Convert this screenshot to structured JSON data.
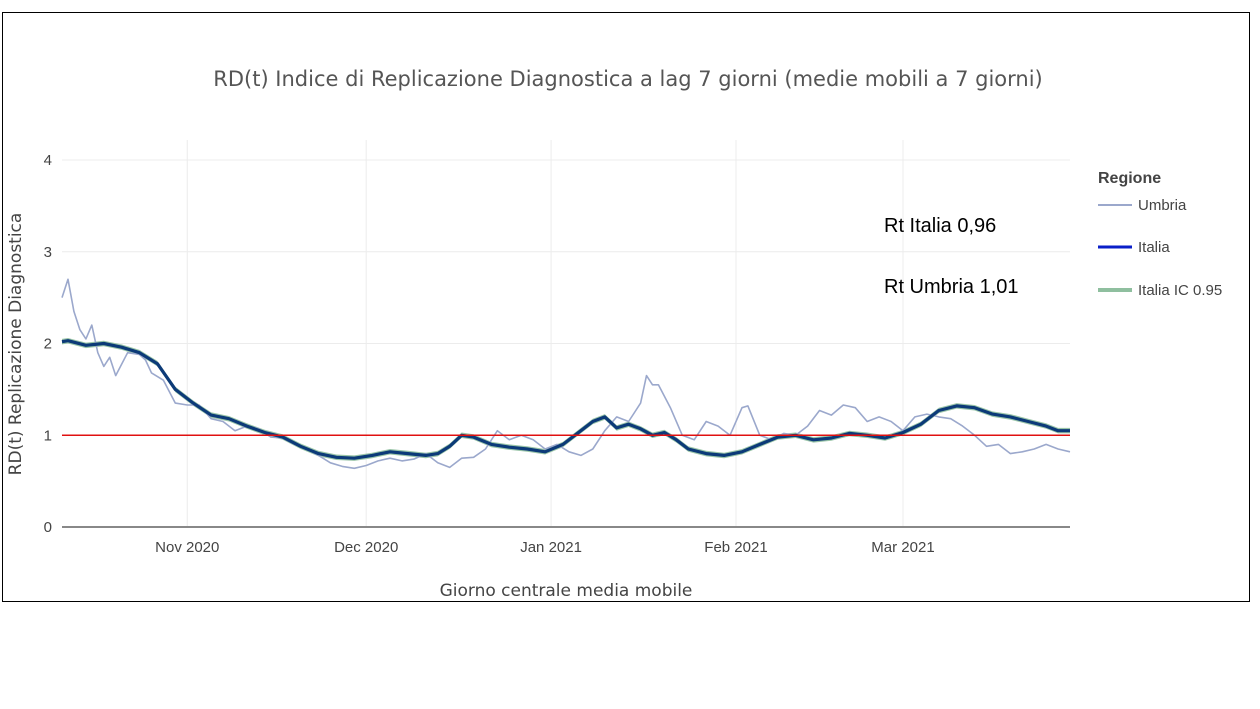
{
  "chart_data": {
    "type": "line",
    "title": "RD(t) Indice di Replicazione Diagnostica a lag 7 giorni (medie mobili a 7 giorni)",
    "xlabel": "Giorno centrale media mobile",
    "ylabel": "RD(t) Replicazione Diagnostica",
    "ylim": [
      0,
      4
    ],
    "xlim": [
      "2020-10-11",
      "2021-03-29"
    ],
    "yticks": [
      "0",
      "1",
      "2",
      "3",
      "4"
    ],
    "xticks": [
      {
        "date": "2020-11-01",
        "label": "Nov 2020"
      },
      {
        "date": "2020-12-01",
        "label": "Dec 2020"
      },
      {
        "date": "2021-01-01",
        "label": "Jan 2021"
      },
      {
        "date": "2021-02-01",
        "label": "Feb 2021"
      },
      {
        "date": "2021-03-01",
        "label": "Mar 2021"
      }
    ],
    "grid": true,
    "reference_line": {
      "y": 1,
      "color": "#e01010"
    },
    "legend": {
      "title": "Regione",
      "placement": "right",
      "entries": [
        {
          "name": "Umbria",
          "color": "#9ba8cc"
        },
        {
          "name": "Italia",
          "color": "#0a1fc8"
        },
        {
          "name": "Italia IC 0.95",
          "color": "#8fbf9f"
        }
      ]
    },
    "annotations": [
      "Rt Italia 0,96",
      "Rt Umbria 1,01"
    ],
    "series": [
      {
        "name": "Umbria",
        "color": "#9ba8cc",
        "points": [
          [
            "2020-10-11",
            2.5
          ],
          [
            "2020-10-12",
            2.7
          ],
          [
            "2020-10-13",
            2.35
          ],
          [
            "2020-10-14",
            2.15
          ],
          [
            "2020-10-15",
            2.05
          ],
          [
            "2020-10-16",
            2.2
          ],
          [
            "2020-10-17",
            1.9
          ],
          [
            "2020-10-18",
            1.75
          ],
          [
            "2020-10-19",
            1.85
          ],
          [
            "2020-10-20",
            1.65
          ],
          [
            "2020-10-22",
            1.9
          ],
          [
            "2020-10-24",
            1.88
          ],
          [
            "2020-10-25",
            1.82
          ],
          [
            "2020-10-26",
            1.68
          ],
          [
            "2020-10-28",
            1.6
          ],
          [
            "2020-10-30",
            1.35
          ],
          [
            "2020-11-01",
            1.33
          ],
          [
            "2020-11-03",
            1.33
          ],
          [
            "2020-11-05",
            1.18
          ],
          [
            "2020-11-07",
            1.15
          ],
          [
            "2020-11-09",
            1.05
          ],
          [
            "2020-11-11",
            1.1
          ],
          [
            "2020-11-13",
            1.07
          ],
          [
            "2020-11-15",
            0.98
          ],
          [
            "2020-11-17",
            0.97
          ],
          [
            "2020-11-19",
            0.9
          ],
          [
            "2020-11-21",
            0.85
          ],
          [
            "2020-11-23",
            0.78
          ],
          [
            "2020-11-25",
            0.7
          ],
          [
            "2020-11-27",
            0.66
          ],
          [
            "2020-11-29",
            0.64
          ],
          [
            "2020-12-01",
            0.67
          ],
          [
            "2020-12-03",
            0.72
          ],
          [
            "2020-12-05",
            0.75
          ],
          [
            "2020-12-07",
            0.72
          ],
          [
            "2020-12-09",
            0.74
          ],
          [
            "2020-12-11",
            0.8
          ],
          [
            "2020-12-13",
            0.7
          ],
          [
            "2020-12-15",
            0.65
          ],
          [
            "2020-12-17",
            0.75
          ],
          [
            "2020-12-19",
            0.76
          ],
          [
            "2020-12-21",
            0.85
          ],
          [
            "2020-12-23",
            1.05
          ],
          [
            "2020-12-25",
            0.95
          ],
          [
            "2020-12-27",
            1.0
          ],
          [
            "2020-12-29",
            0.95
          ],
          [
            "2020-12-31",
            0.85
          ],
          [
            "2021-01-02",
            0.9
          ],
          [
            "2021-01-04",
            0.82
          ],
          [
            "2021-01-06",
            0.78
          ],
          [
            "2021-01-08",
            0.85
          ],
          [
            "2021-01-10",
            1.05
          ],
          [
            "2021-01-12",
            1.2
          ],
          [
            "2021-01-14",
            1.15
          ],
          [
            "2021-01-16",
            1.35
          ],
          [
            "2021-01-17",
            1.65
          ],
          [
            "2021-01-18",
            1.55
          ],
          [
            "2021-01-19",
            1.55
          ],
          [
            "2021-01-21",
            1.3
          ],
          [
            "2021-01-23",
            1.0
          ],
          [
            "2021-01-25",
            0.95
          ],
          [
            "2021-01-27",
            1.15
          ],
          [
            "2021-01-29",
            1.1
          ],
          [
            "2021-01-31",
            1.0
          ],
          [
            "2021-02-02",
            1.3
          ],
          [
            "2021-02-03",
            1.32
          ],
          [
            "2021-02-05",
            1.0
          ],
          [
            "2021-02-07",
            0.95
          ],
          [
            "2021-02-09",
            1.02
          ],
          [
            "2021-02-11",
            1.0
          ],
          [
            "2021-02-13",
            1.1
          ],
          [
            "2021-02-15",
            1.27
          ],
          [
            "2021-02-17",
            1.22
          ],
          [
            "2021-02-19",
            1.33
          ],
          [
            "2021-02-21",
            1.3
          ],
          [
            "2021-02-23",
            1.15
          ],
          [
            "2021-02-25",
            1.2
          ],
          [
            "2021-02-27",
            1.15
          ],
          [
            "2021-03-01",
            1.05
          ],
          [
            "2021-03-03",
            1.2
          ],
          [
            "2021-03-05",
            1.23
          ],
          [
            "2021-03-07",
            1.2
          ],
          [
            "2021-03-09",
            1.18
          ],
          [
            "2021-03-11",
            1.1
          ],
          [
            "2021-03-13",
            1.0
          ],
          [
            "2021-03-15",
            0.88
          ],
          [
            "2021-03-17",
            0.9
          ],
          [
            "2021-03-19",
            0.8
          ],
          [
            "2021-03-21",
            0.82
          ],
          [
            "2021-03-23",
            0.85
          ],
          [
            "2021-03-25",
            0.9
          ],
          [
            "2021-03-27",
            0.85
          ],
          [
            "2021-03-29",
            0.82
          ]
        ]
      },
      {
        "name": "Italia",
        "color": "#0c3a78",
        "points": [
          [
            "2020-10-11",
            2.02
          ],
          [
            "2020-10-12",
            2.03
          ],
          [
            "2020-10-15",
            1.98
          ],
          [
            "2020-10-18",
            2.0
          ],
          [
            "2020-10-21",
            1.96
          ],
          [
            "2020-10-24",
            1.9
          ],
          [
            "2020-10-27",
            1.78
          ],
          [
            "2020-10-30",
            1.5
          ],
          [
            "2020-11-02",
            1.35
          ],
          [
            "2020-11-05",
            1.22
          ],
          [
            "2020-11-08",
            1.18
          ],
          [
            "2020-11-11",
            1.1
          ],
          [
            "2020-11-14",
            1.03
          ],
          [
            "2020-11-17",
            0.98
          ],
          [
            "2020-11-20",
            0.88
          ],
          [
            "2020-11-23",
            0.8
          ],
          [
            "2020-11-26",
            0.76
          ],
          [
            "2020-11-29",
            0.75
          ],
          [
            "2020-12-02",
            0.78
          ],
          [
            "2020-12-05",
            0.82
          ],
          [
            "2020-12-08",
            0.8
          ],
          [
            "2020-12-11",
            0.78
          ],
          [
            "2020-12-13",
            0.8
          ],
          [
            "2020-12-15",
            0.88
          ],
          [
            "2020-12-17",
            1.0
          ],
          [
            "2020-12-19",
            0.98
          ],
          [
            "2020-12-22",
            0.9
          ],
          [
            "2020-12-25",
            0.87
          ],
          [
            "2020-12-28",
            0.85
          ],
          [
            "2020-12-31",
            0.82
          ],
          [
            "2021-01-03",
            0.9
          ],
          [
            "2021-01-06",
            1.05
          ],
          [
            "2021-01-08",
            1.15
          ],
          [
            "2021-01-10",
            1.2
          ],
          [
            "2021-01-12",
            1.08
          ],
          [
            "2021-01-14",
            1.12
          ],
          [
            "2021-01-16",
            1.07
          ],
          [
            "2021-01-18",
            1.0
          ],
          [
            "2021-01-20",
            1.03
          ],
          [
            "2021-01-22",
            0.95
          ],
          [
            "2021-01-24",
            0.85
          ],
          [
            "2021-01-27",
            0.8
          ],
          [
            "2021-01-30",
            0.78
          ],
          [
            "2021-02-02",
            0.82
          ],
          [
            "2021-02-05",
            0.9
          ],
          [
            "2021-02-08",
            0.98
          ],
          [
            "2021-02-11",
            1.0
          ],
          [
            "2021-02-14",
            0.95
          ],
          [
            "2021-02-17",
            0.97
          ],
          [
            "2021-02-20",
            1.02
          ],
          [
            "2021-02-23",
            1.0
          ],
          [
            "2021-02-26",
            0.97
          ],
          [
            "2021-03-01",
            1.03
          ],
          [
            "2021-03-04",
            1.12
          ],
          [
            "2021-03-07",
            1.27
          ],
          [
            "2021-03-10",
            1.32
          ],
          [
            "2021-03-13",
            1.3
          ],
          [
            "2021-03-16",
            1.23
          ],
          [
            "2021-03-19",
            1.2
          ],
          [
            "2021-03-22",
            1.15
          ],
          [
            "2021-03-25",
            1.1
          ],
          [
            "2021-03-27",
            1.05
          ],
          [
            "2021-03-29",
            1.05
          ]
        ]
      }
    ]
  }
}
